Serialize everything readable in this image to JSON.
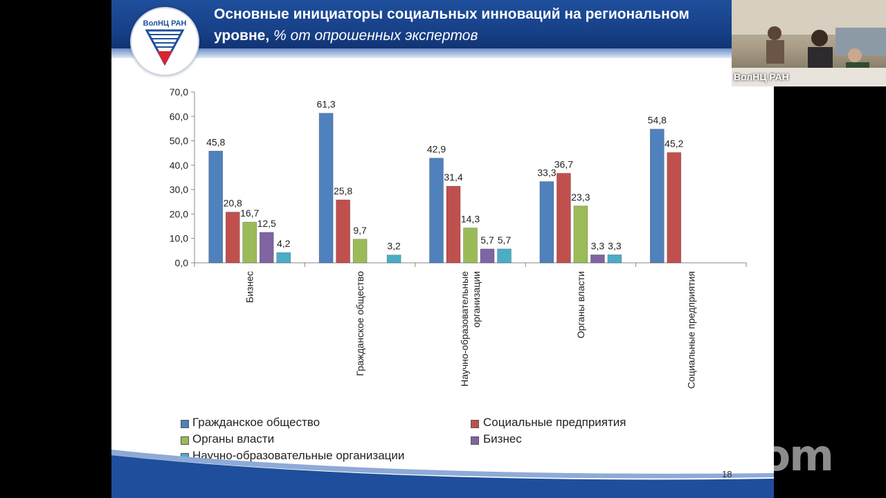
{
  "slide": {
    "title_line1": "Основные инициаторы социальных инноваций на региональном",
    "title_line2_bold": "уровне,",
    "title_line2_italic": " % от опрошенных экспертов",
    "logo_text": "ВолНЦ РАН",
    "page_number": "18"
  },
  "video": {
    "label": "ВолНЦ РАН"
  },
  "watermark": "zoom",
  "colors": {
    "Гражданское общество": "#4f81bd",
    "Социальные предприятия": "#c0504d",
    "Органы власти": "#9bbb59",
    "Бизнес": "#8064a2",
    "Научно-образовательные организации": "#4bacc6"
  },
  "legend": [
    "Гражданское общество",
    "Социальные предприятия",
    "Органы власти",
    "Бизнес",
    "Научно-образовательные организации"
  ],
  "chart_data": {
    "type": "bar",
    "categories": [
      "Бизнес",
      "Гражданское общество",
      "Научно-образовательные организации",
      "Органы власти",
      "Социальные предприятия"
    ],
    "category_lines": [
      [
        "Бизнес"
      ],
      [
        "Гражданское общество"
      ],
      [
        "Научно-образовательные",
        "организации"
      ],
      [
        "Органы власти"
      ],
      [
        "Социальные предприятия"
      ]
    ],
    "ylim": [
      0,
      70
    ],
    "yticks": [
      "0,0",
      "10,0",
      "20,0",
      "30,0",
      "40,0",
      "50,0",
      "60,0",
      "70,0"
    ],
    "series": [
      {
        "name": "Гражданское общество",
        "values": [
          45.8,
          61.3,
          42.9,
          33.3,
          54.8
        ]
      },
      {
        "name": "Социальные предприятия",
        "values": [
          20.8,
          25.8,
          31.4,
          36.7,
          45.2
        ]
      },
      {
        "name": "Органы власти",
        "values": [
          16.7,
          9.7,
          14.3,
          23.3,
          null
        ]
      },
      {
        "name": "Бизнес",
        "values": [
          12.5,
          null,
          5.7,
          3.3,
          null
        ]
      },
      {
        "name": "Научно-образовательные организации",
        "values": [
          4.2,
          3.2,
          5.7,
          3.3,
          null
        ]
      }
    ]
  }
}
